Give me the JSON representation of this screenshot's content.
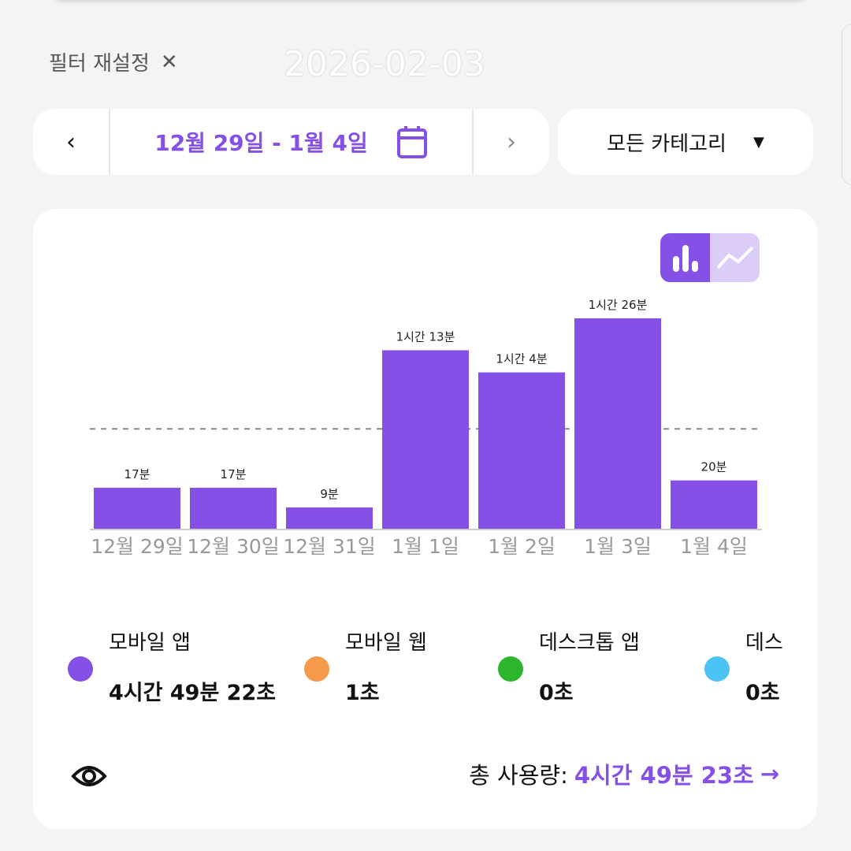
{
  "watermark_date": "2026-02-03",
  "filter_reset": {
    "label": "필터 재설정",
    "icon": "close-icon"
  },
  "date_range": {
    "prev_icon": "chevron-left-icon",
    "label": "12월 29일 - 1월 4일",
    "calendar_icon": "calendar-icon",
    "next_icon": "chevron-right-icon"
  },
  "category": {
    "selected": "모든 카테고리",
    "icon": "caret-down-icon"
  },
  "view_toggle": {
    "active": "bar",
    "options": [
      "bar",
      "line"
    ]
  },
  "colors": {
    "accent": "#8550e6",
    "mobile_app": "#8550e6",
    "mobile_web": "#f6994a",
    "desktop_app": "#2db52d",
    "desktop_web": "#4cc3f5"
  },
  "chart_data": {
    "type": "bar",
    "categories": [
      "12월 29일",
      "12월 30일",
      "12월 31일",
      "1월 1일",
      "1월 2일",
      "1월 3일",
      "1월 4일"
    ],
    "values_minutes": [
      17,
      17,
      9,
      73,
      64,
      86,
      20
    ],
    "data_labels": [
      "17분",
      "17분",
      "9분",
      "1시간 13분",
      "1시간 4분",
      "1시간 26분",
      "20분"
    ],
    "average_line_minutes": 41,
    "color": "#8550e6"
  },
  "legend": [
    {
      "name": "모바일 앱",
      "value": "4시간 49분 22초",
      "color": "#8550e6"
    },
    {
      "name": "모바일 웹",
      "value": "1초",
      "color": "#f6994a"
    },
    {
      "name": "데스크톱 앱",
      "value": "0초",
      "color": "#2db52d"
    },
    {
      "name": "데스",
      "value": "0초",
      "color": "#4cc3f5"
    }
  ],
  "footer": {
    "visibility_icon": "eye-icon",
    "total_label": "총 사용량:",
    "total_value": "4시간 49분 23초",
    "arrow_icon": "arrow-right-icon"
  }
}
